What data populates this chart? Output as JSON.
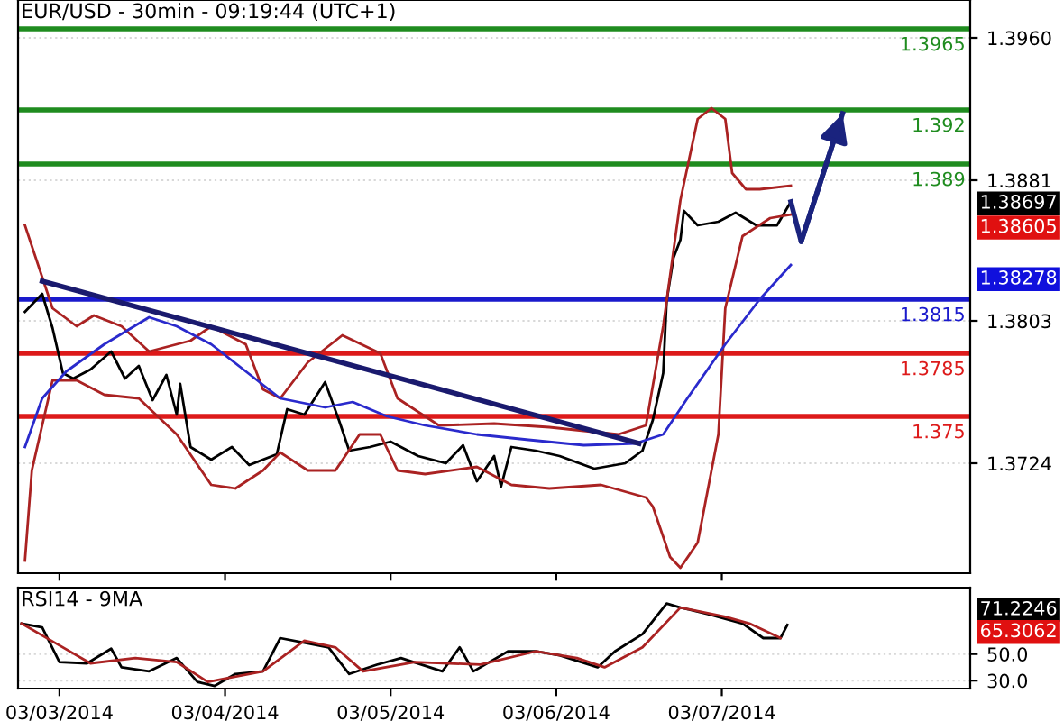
{
  "chart_data": [
    {
      "type": "line",
      "title": "EUR/USD - 30min - 09:19:44 (UTC+1)",
      "xlim": [
        "2014-03-02T18:00",
        "2014-03-08T12:00"
      ],
      "ylim": [
        1.3663,
        1.3981
      ],
      "xticks": [
        {
          "value": "2014-03-03",
          "label": null
        },
        {
          "value": "2014-03-04",
          "label": null
        },
        {
          "value": "2014-03-05",
          "label": null
        },
        {
          "value": "2014-03-06",
          "label": null
        },
        {
          "value": "2014-03-07",
          "label": null
        }
      ],
      "yticks": [
        {
          "value": 1.396,
          "label": "1.3960"
        },
        1.3881,
        1.3803,
        1.3724
      ],
      "tick_labels": "y",
      "grid": "y",
      "legend": false,
      "series": [
        {
          "color": "#000000",
          "x": [
            "2014-03-02T19:00",
            "2014-03-02T21:30",
            "2014-03-02T23:00",
            "2014-03-03T00:30",
            "2014-03-03T02:00",
            "2014-03-03T04:30",
            "2014-03-03T07:30",
            "2014-03-03T09:30",
            "2014-03-03T11:30",
            "2014-03-03T13:30",
            "2014-03-03T15:30",
            "2014-03-03T17:00",
            "2014-03-03T17:30",
            "2014-03-03T19:00",
            "2014-03-03T22:00",
            "2014-03-04T01:00",
            "2014-03-04T03:30",
            "2014-03-04T07:30",
            "2014-03-04T09:00",
            "2014-03-04T11:30",
            "2014-03-04T14:30",
            "2014-03-04T16:30",
            "2014-03-04T18:00",
            "2014-03-04T21:00",
            "2014-03-05T00:00",
            "2014-03-05T04:00",
            "2014-03-05T08:00",
            "2014-03-05T10:30",
            "2014-03-05T12:30",
            "2014-03-05T15:00",
            "2014-03-05T16:00",
            "2014-03-05T17:30",
            "2014-03-05T21:00",
            "2014-03-06T00:30",
            "2014-03-06T05:30",
            "2014-03-06T10:00",
            "2014-03-06T12:30",
            "2014-03-06T14:00",
            "2014-03-06T15:30",
            "2014-03-06T16:00",
            "2014-03-06T17:00",
            "2014-03-06T18:00",
            "2014-03-06T18:30",
            "2014-03-06T20:30",
            "2014-03-06T23:30",
            "2014-03-07T02:00",
            "2014-03-07T05:00",
            "2014-03-07T08:00",
            "2014-03-07T10:00"
          ],
          "values": [
            1.3808,
            1.3818,
            1.3799,
            1.3774,
            1.3771,
            1.3776,
            1.3786,
            1.3771,
            1.3778,
            1.3759,
            1.3773,
            1.3751,
            1.3768,
            1.3733,
            1.3726,
            1.3733,
            1.3723,
            1.3729,
            1.3754,
            1.3751,
            1.3769,
            1.3748,
            1.3731,
            1.3733,
            1.3736,
            1.3728,
            1.3724,
            1.3734,
            1.3714,
            1.3728,
            1.3711,
            1.3733,
            1.3731,
            1.3728,
            1.3721,
            1.3724,
            1.3731,
            1.3748,
            1.3774,
            1.3814,
            1.3838,
            1.3848,
            1.3864,
            1.3856,
            1.3858,
            1.3863,
            1.3856,
            1.3856,
            1.3869
          ]
        },
        {
          "color": "#aa2222",
          "x": [
            "2014-03-02T19:00",
            "2014-03-02T23:00",
            "2014-03-03T02:30",
            "2014-03-03T05:00",
            "2014-03-03T09:00",
            "2014-03-03T13:00",
            "2014-03-03T19:00",
            "2014-03-03T22:00",
            "2014-03-04T03:00",
            "2014-03-04T05:30",
            "2014-03-04T08:00",
            "2014-03-04T12:00",
            "2014-03-04T17:00",
            "2014-03-04T22:30",
            "2014-03-05T01:00",
            "2014-03-05T07:00",
            "2014-03-05T15:00",
            "2014-03-05T23:00",
            "2014-03-06T09:00",
            "2014-03-06T13:00",
            "2014-03-06T15:30",
            "2014-03-06T18:00",
            "2014-03-06T20:30",
            "2014-03-06T22:30",
            "2014-03-07T00:30",
            "2014-03-07T01:30",
            "2014-03-07T03:30",
            "2014-03-07T05:30",
            "2014-03-07T10:00"
          ],
          "values": [
            1.3856,
            1.381,
            1.38,
            1.3806,
            1.38,
            1.3786,
            1.3792,
            1.38,
            1.379,
            1.3765,
            1.376,
            1.378,
            1.3795,
            1.3785,
            1.376,
            1.3745,
            1.3746,
            1.3744,
            1.374,
            1.3745,
            1.38,
            1.387,
            1.3915,
            1.3921,
            1.3915,
            1.3885,
            1.3876,
            1.3876,
            1.3878
          ]
        },
        {
          "color": "#aa2222",
          "x": [
            "2014-03-02T19:00",
            "2014-03-02T20:00",
            "2014-03-02T23:00",
            "2014-03-03T02:30",
            "2014-03-03T06:30",
            "2014-03-03T11:30",
            "2014-03-03T17:00",
            "2014-03-03T22:00",
            "2014-03-04T01:30",
            "2014-03-04T05:30",
            "2014-03-04T08:00",
            "2014-03-04T12:00",
            "2014-03-04T16:00",
            "2014-03-04T19:30",
            "2014-03-04T22:30",
            "2014-03-05T01:00",
            "2014-03-05T05:00",
            "2014-03-05T12:30",
            "2014-03-05T17:30",
            "2014-03-05T23:00",
            "2014-03-06T06:30",
            "2014-03-06T13:00",
            "2014-03-06T14:00",
            "2014-03-06T16:30",
            "2014-03-06T18:00",
            "2014-03-06T20:30",
            "2014-03-06T23:30",
            "2014-03-07T00:30",
            "2014-03-07T03:00",
            "2014-03-07T07:00",
            "2014-03-07T10:00"
          ],
          "values": [
            1.367,
            1.372,
            1.377,
            1.377,
            1.3762,
            1.376,
            1.374,
            1.3712,
            1.371,
            1.372,
            1.373,
            1.372,
            1.372,
            1.374,
            1.374,
            1.372,
            1.3718,
            1.3722,
            1.3712,
            1.371,
            1.3712,
            1.3705,
            1.37,
            1.3672,
            1.3666,
            1.368,
            1.374,
            1.381,
            1.385,
            1.386,
            1.3862
          ]
        },
        {
          "color": "#2a2acc",
          "x": [
            "2014-03-02T19:00",
            "2014-03-02T21:30",
            "2014-03-03T01:00",
            "2014-03-03T06:30",
            "2014-03-03T13:00",
            "2014-03-03T17:00",
            "2014-03-03T22:00",
            "2014-03-04T03:00",
            "2014-03-04T08:00",
            "2014-03-04T14:30",
            "2014-03-04T18:30",
            "2014-03-04T23:30",
            "2014-03-05T05:00",
            "2014-03-05T12:30",
            "2014-03-05T20:00",
            "2014-03-06T04:00",
            "2014-03-06T11:30",
            "2014-03-06T15:30",
            "2014-03-06T19:00",
            "2014-03-07T00:30",
            "2014-03-07T05:30",
            "2014-03-07T10:00"
          ],
          "values": [
            1.3733,
            1.376,
            1.3775,
            1.379,
            1.3805,
            1.38,
            1.379,
            1.3775,
            1.376,
            1.3755,
            1.3758,
            1.375,
            1.3745,
            1.374,
            1.3737,
            1.3734,
            1.3735,
            1.374,
            1.376,
            1.379,
            1.3815,
            1.3834
          ]
        },
        {
          "color": "#1a1a6e",
          "x": [
            "2014-03-02T21:30",
            "2014-03-06T12:00"
          ],
          "values": [
            1.3825,
            1.3735
          ]
        },
        {
          "color": "#1a237e",
          "x": [
            "2014-03-07T10:00",
            "2014-03-07T11:30",
            "2014-03-07T17:30"
          ],
          "values": [
            1.3869,
            1.3847,
            1.3918
          ]
        }
      ],
      "ref_lines": [
        {
          "axis": "y",
          "value": 1.3965,
          "label": "1.3965",
          "color": "#1f8c1f"
        },
        {
          "axis": "y",
          "value": 1.392,
          "label": "1.392",
          "color": "#1f8c1f"
        },
        {
          "axis": "y",
          "value": 1.389,
          "label": "1.389",
          "color": "#1f8c1f"
        },
        {
          "axis": "y",
          "value": 1.3815,
          "label": "1.3815",
          "color": "#1a1acc"
        },
        {
          "axis": "y",
          "value": 1.3785,
          "label": "1.3785",
          "color": "#dd1a1a"
        },
        {
          "axis": "y",
          "value": 1.375,
          "label": "1.375",
          "color": "#dd1a1a"
        }
      ],
      "annotations": [
        "1.38697",
        "1.38605",
        "1.38278"
      ]
    },
    {
      "type": "line",
      "title": "RSI14 - 9MA",
      "xlim": [
        "2014-03-02T18:00",
        "2014-03-08T12:00"
      ],
      "ylim": [
        24,
        100
      ],
      "xticks": [
        {
          "value": "2014-03-03",
          "label": "03/03/2014"
        },
        {
          "value": "2014-03-04",
          "label": "03/04/2014"
        },
        {
          "value": "2014-03-05",
          "label": "03/05/2014"
        },
        {
          "value": "2014-03-06",
          "label": "03/06/2014"
        },
        {
          "value": "2014-03-07",
          "label": "03/07/2014"
        }
      ],
      "yticks": [
        {
          "value": 30,
          "label": "30.0"
        },
        {
          "value": 50,
          "label": "50.0"
        }
      ],
      "grid": "y",
      "legend": false,
      "series": [
        {
          "color": "#000000",
          "x": [
            "2014-03-02T18:30",
            "2014-03-02T21:30",
            "2014-03-03T00:00",
            "2014-03-03T04:00",
            "2014-03-03T07:30",
            "2014-03-03T09:00",
            "2014-03-03T13:00",
            "2014-03-03T17:00",
            "2014-03-03T20:00",
            "2014-03-03T22:30",
            "2014-03-04T01:30",
            "2014-03-04T05:30",
            "2014-03-04T08:00",
            "2014-03-04T12:00",
            "2014-03-04T15:00",
            "2014-03-04T18:00",
            "2014-03-04T22:00",
            "2014-03-05T01:30",
            "2014-03-05T07:30",
            "2014-03-05T10:00",
            "2014-03-05T12:00",
            "2014-03-05T17:00",
            "2014-03-05T21:00",
            "2014-03-06T00:30",
            "2014-03-06T06:00",
            "2014-03-06T08:30",
            "2014-03-06T12:30",
            "2014-03-06T16:00",
            "2014-03-06T18:00",
            "2014-03-06T22:00",
            "2014-03-07T03:00",
            "2014-03-07T06:00",
            "2014-03-07T08:30",
            "2014-03-07T09:30"
          ],
          "values": [
            73,
            70,
            44,
            43,
            54,
            40,
            37,
            47,
            29,
            26,
            35,
            37,
            62,
            58,
            55,
            35,
            42,
            47,
            37,
            55,
            37,
            52,
            52,
            49,
            40,
            52,
            65,
            88,
            85,
            80,
            73,
            62,
            62,
            72
          ]
        },
        {
          "color": "#aa2222",
          "x": [
            "2014-03-02T18:30",
            "2014-03-02T23:30",
            "2014-03-03T04:30",
            "2014-03-03T11:00",
            "2014-03-03T17:00",
            "2014-03-03T21:30",
            "2014-03-04T05:30",
            "2014-03-04T11:30",
            "2014-03-04T16:00",
            "2014-03-04T20:00",
            "2014-03-05T03:30",
            "2014-03-05T13:00",
            "2014-03-05T21:00",
            "2014-03-06T03:00",
            "2014-03-06T07:00",
            "2014-03-06T12:30",
            "2014-03-06T18:00",
            "2014-03-07T00:30",
            "2014-03-07T04:00",
            "2014-03-07T08:30"
          ],
          "values": [
            73,
            58,
            43,
            47,
            44,
            29,
            37,
            60,
            55,
            37,
            44,
            42,
            52,
            47,
            40,
            55,
            85,
            78,
            73,
            62
          ]
        }
      ],
      "annotations": [
        "71.2246",
        "65.3062"
      ]
    }
  ]
}
